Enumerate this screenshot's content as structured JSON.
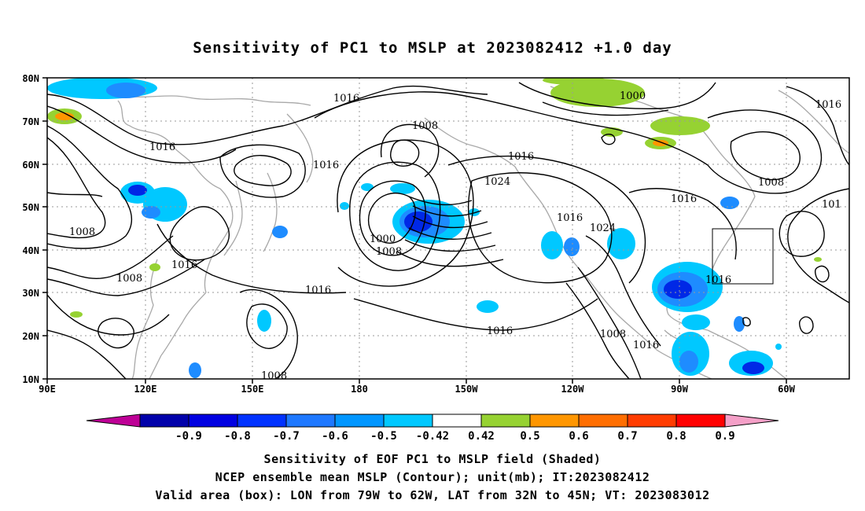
{
  "title": "Sensitivity of PC1 to MSLP at 2023082412 +1.0 day",
  "map": {
    "lat_labels": [
      "80N",
      "70N",
      "60N",
      "50N",
      "40N",
      "30N",
      "20N",
      "10N"
    ],
    "lon_labels": [
      "90E",
      "120E",
      "150E",
      "180",
      "150W",
      "120W",
      "90W",
      "60W"
    ],
    "contour_labels": [
      {
        "text": "1016"
      },
      {
        "text": "1008"
      },
      {
        "text": "1016"
      },
      {
        "text": "1016"
      },
      {
        "text": "1008"
      },
      {
        "text": "1000"
      },
      {
        "text": "1008"
      },
      {
        "text": "1016"
      },
      {
        "text": "1024"
      },
      {
        "text": "1016"
      },
      {
        "text": "1024"
      },
      {
        "text": "1016"
      },
      {
        "text": "1000"
      },
      {
        "text": "1016"
      },
      {
        "text": "1008"
      },
      {
        "text": "1016"
      },
      {
        "text": "1016"
      },
      {
        "text": "101"
      },
      {
        "text": "1016"
      },
      {
        "text": "1008"
      },
      {
        "text": "1016"
      },
      {
        "text": "1008"
      },
      {
        "text": "1016"
      },
      {
        "text": "1008"
      }
    ],
    "colors": {
      "land": "#a8a8a8",
      "contour": "#000000",
      "grid": "#9a9a9a",
      "neg_light": "#00c8ff",
      "neg_mid": "#1e8cff",
      "neg_dark": "#0028e6",
      "pos_green": "#96d232",
      "pos_orange": "#ff9600"
    }
  },
  "colorbar": {
    "ticks": [
      "-0.9",
      "-0.8",
      "-0.7",
      "-0.6",
      "-0.5",
      "-0.42",
      "0.42",
      "0.5",
      "0.6",
      "0.7",
      "0.8",
      "0.9"
    ],
    "colors": [
      "#be0096",
      "#0000aa",
      "#0000e1",
      "#0032ff",
      "#1e78ff",
      "#0096ff",
      "#00c8ff",
      "#ffffff",
      "#96d232",
      "#ff9600",
      "#ff6e00",
      "#ff3c00",
      "#ff0000",
      "#f5a0c8"
    ]
  },
  "captions": {
    "line1": "Sensitivity of EOF PC1 to MSLP field (Shaded)",
    "line2": "NCEP ensemble mean MSLP (Contour); unit(mb); IT:2023082412",
    "line3": "Valid area (box): LON from 79W to 62W, LAT from 32N to 45N; VT: 2023083012"
  }
}
